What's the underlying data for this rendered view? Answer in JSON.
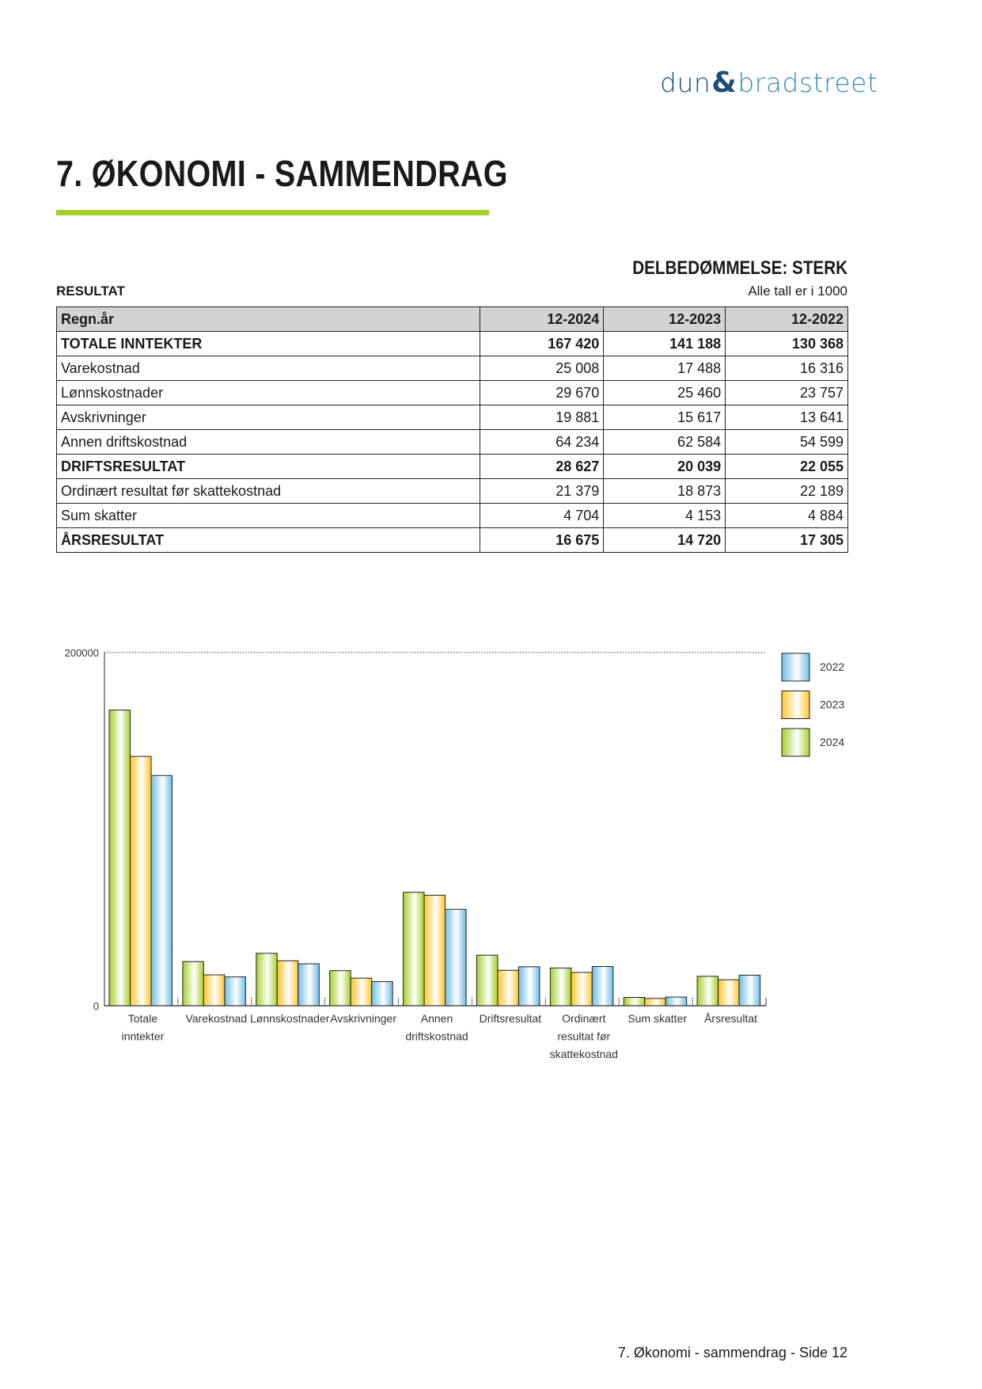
{
  "logo": {
    "part1": "dun",
    "amp": "&",
    "part2": "bradstreet"
  },
  "title": "7. ØKONOMI - SAMMENDRAG",
  "accent_color": "#a6cf2b",
  "rating": "DELBEDØMMELSE: STERK",
  "section": "RESULTAT",
  "unit_note": "Alle tall er i 1000",
  "table": {
    "headers": [
      "Regn.år",
      "12-2024",
      "12-2023",
      "12-2022"
    ],
    "rows": [
      {
        "label": "TOTALE INNTEKTER",
        "values": [
          "167 420",
          "141 188",
          "130 368"
        ],
        "bold": true
      },
      {
        "label": "Varekostnad",
        "values": [
          "25 008",
          "17 488",
          "16 316"
        ],
        "bold": false
      },
      {
        "label": "Lønnskostnader",
        "values": [
          "29 670",
          "25 460",
          "23 757"
        ],
        "bold": false
      },
      {
        "label": "Avskrivninger",
        "values": [
          "19 881",
          "15 617",
          "13 641"
        ],
        "bold": false
      },
      {
        "label": "Annen driftskostnad",
        "values": [
          "64 234",
          "62 584",
          "54 599"
        ],
        "bold": false
      },
      {
        "label": "DRIFTSRESULTAT",
        "values": [
          "28 627",
          "20 039",
          "22 055"
        ],
        "bold": true
      },
      {
        "label": "Ordinært resultat før skattekostnad",
        "values": [
          "21 379",
          "18 873",
          "22 189"
        ],
        "bold": false
      },
      {
        "label": "Sum skatter",
        "values": [
          "4 704",
          "4 153",
          "4 884"
        ],
        "bold": false
      },
      {
        "label": "ÅRSRESULTAT",
        "values": [
          "16 675",
          "14 720",
          "17 305"
        ],
        "bold": true
      }
    ]
  },
  "chart_data": {
    "type": "bar",
    "categories": [
      [
        "Totale",
        "inntekter"
      ],
      [
        "Varekostnad"
      ],
      [
        "Lønnskostnader"
      ],
      [
        "Avskrivninger"
      ],
      [
        "Annen",
        "driftskostnad"
      ],
      [
        "Driftsresultat"
      ],
      [
        "Ordinært",
        "resultat før",
        "skattekostnad"
      ],
      [
        "Sum skatter"
      ],
      [
        "Årsresultat"
      ]
    ],
    "series": [
      {
        "name": "2024",
        "color": "#a6cf2b",
        "values": [
          167420,
          25008,
          29670,
          19881,
          64234,
          28627,
          21379,
          4704,
          16675
        ]
      },
      {
        "name": "2023",
        "color": "#ffc52b",
        "values": [
          141188,
          17488,
          25460,
          15617,
          62584,
          20039,
          18873,
          4153,
          14720
        ]
      },
      {
        "name": "2022",
        "color": "#6fbde9",
        "values": [
          130368,
          16316,
          23757,
          13641,
          54599,
          22055,
          22189,
          4884,
          17305
        ]
      }
    ],
    "yticks": [
      "0",
      "200000"
    ],
    "ylim": [
      0,
      200000
    ],
    "legend_order": [
      "2022",
      "2023",
      "2024"
    ],
    "legend_position": "right",
    "grid": "dotted line at max"
  },
  "footer": "7. Økonomi - sammendrag - Side 12"
}
